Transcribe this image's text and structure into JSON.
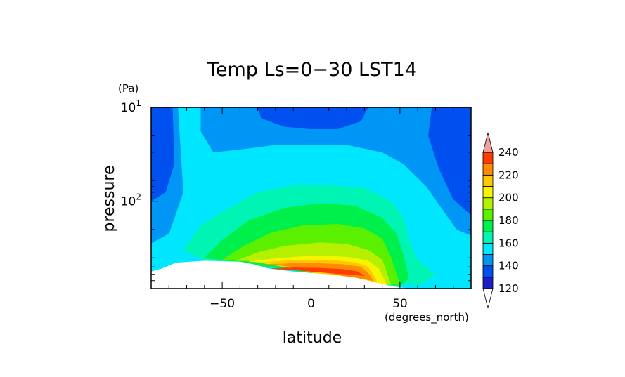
{
  "chart_data": {
    "type": "heatmap",
    "title": "Temp Ls=0−30 LST14",
    "xlabel": "latitude",
    "ylabel": "pressure",
    "x_units": "(degrees_north)",
    "y_units": "(Pa)",
    "xlim": [
      -90,
      90
    ],
    "ylim": [
      10,
      850
    ],
    "y_scale": "log",
    "y_reversed": true,
    "x_ticks": [
      -50,
      0,
      50
    ],
    "x_tick_labels": [
      "−50",
      "0",
      "50"
    ],
    "y_ticks": [
      {
        "value": 10,
        "base": "10",
        "exp": "1"
      },
      {
        "value": 100,
        "base": "10",
        "exp": "2"
      }
    ],
    "colorbar": {
      "levels": [
        110,
        120,
        130,
        140,
        150,
        160,
        170,
        180,
        190,
        200,
        210,
        220,
        230,
        240,
        250
      ],
      "labels": [
        "120",
        "140",
        "160",
        "180",
        "200",
        "220",
        "240"
      ],
      "colors": [
        "#9400d3",
        "#1e1ec8",
        "#0050f0",
        "#0096f5",
        "#00e6ff",
        "#00f5b4",
        "#00f04b",
        "#5af000",
        "#b4f000",
        "#f5f500",
        "#ffc800",
        "#ff8c00",
        "#ff3c00",
        "#f0a0a0"
      ],
      "extend": "both"
    },
    "missing_region": "white area near the surface (high pressure) where data is undefined",
    "contour_bands": [
      {
        "color": "#00e6ff",
        "points": [
          [
            -90,
            10
          ],
          [
            -72,
            10
          ],
          [
            -70,
            20
          ],
          [
            -68,
            70
          ],
          [
            -70,
            220
          ],
          [
            -90,
            320
          ]
        ]
      },
      {
        "color": "#0096f5",
        "points": [
          [
            -90,
            10
          ],
          [
            -75,
            10
          ],
          [
            -72,
            80
          ],
          [
            -80,
            220
          ],
          [
            -90,
            280
          ]
        ]
      },
      {
        "color": "#0050f0",
        "points": [
          [
            -90,
            10
          ],
          [
            -78,
            10
          ],
          [
            -77,
            40
          ],
          [
            -82,
            80
          ],
          [
            -90,
            100
          ]
        ]
      },
      {
        "color": "#0096f5",
        "points": [
          [
            -62,
            10
          ],
          [
            90,
            10
          ],
          [
            90,
            230
          ],
          [
            82,
            200
          ],
          [
            75,
            130
          ],
          [
            65,
            70
          ],
          [
            52,
            40
          ],
          [
            40,
            30
          ],
          [
            20,
            25
          ],
          [
            0,
            25
          ],
          [
            -20,
            25
          ],
          [
            -40,
            28
          ],
          [
            -55,
            30
          ],
          [
            -62,
            18
          ]
        ]
      },
      {
        "color": "#0050f0",
        "points": [
          [
            -30,
            10
          ],
          [
            32,
            10
          ],
          [
            28,
            14
          ],
          [
            15,
            17
          ],
          [
            0,
            17
          ],
          [
            -15,
            16
          ],
          [
            -28,
            13
          ]
        ]
      },
      {
        "color": "#0050f0",
        "points": [
          [
            68,
            10
          ],
          [
            90,
            10
          ],
          [
            90,
            140
          ],
          [
            80,
            95
          ],
          [
            72,
            45
          ],
          [
            66,
            20
          ]
        ]
      },
      {
        "color": "#00f5b4",
        "points": [
          [
            -72,
            330
          ],
          [
            -62,
            180
          ],
          [
            -50,
            130
          ],
          [
            -30,
            80
          ],
          [
            -10,
            68
          ],
          [
            10,
            68
          ],
          [
            30,
            72
          ],
          [
            45,
            100
          ],
          [
            52,
            150
          ],
          [
            55,
            260
          ],
          [
            60,
            420
          ],
          [
            70,
            620
          ],
          [
            60,
            780
          ],
          [
            -60,
            420
          ]
        ]
      },
      {
        "color": "#00f04b",
        "points": [
          [
            -60,
            400
          ],
          [
            -50,
            260
          ],
          [
            -35,
            160
          ],
          [
            -15,
            118
          ],
          [
            5,
            105
          ],
          [
            25,
            112
          ],
          [
            40,
            150
          ],
          [
            48,
            220
          ],
          [
            52,
            380
          ],
          [
            55,
            660
          ],
          [
            50,
            800
          ],
          [
            -50,
            420
          ]
        ]
      },
      {
        "color": "#5af000",
        "points": [
          [
            -50,
            420
          ],
          [
            -38,
            300
          ],
          [
            -22,
            215
          ],
          [
            -5,
            182
          ],
          [
            15,
            175
          ],
          [
            30,
            195
          ],
          [
            40,
            250
          ],
          [
            45,
            400
          ],
          [
            50,
            780
          ],
          [
            -40,
            420
          ]
        ]
      },
      {
        "color": "#b4f000",
        "points": [
          [
            -42,
            430
          ],
          [
            -30,
            350
          ],
          [
            -15,
            300
          ],
          [
            5,
            275
          ],
          [
            20,
            285
          ],
          [
            32,
            330
          ],
          [
            40,
            420
          ],
          [
            45,
            780
          ],
          [
            -35,
            430
          ]
        ]
      },
      {
        "color": "#f5f500",
        "points": [
          [
            -35,
            440
          ],
          [
            -22,
            410
          ],
          [
            -8,
            390
          ],
          [
            8,
            380
          ],
          [
            22,
            395
          ],
          [
            32,
            430
          ],
          [
            38,
            520
          ],
          [
            43,
            800
          ],
          [
            -30,
            440
          ]
        ]
      },
      {
        "color": "#ffc800",
        "points": [
          [
            -28,
            450
          ],
          [
            -15,
            430
          ],
          [
            0,
            425
          ],
          [
            15,
            430
          ],
          [
            25,
            450
          ],
          [
            32,
            500
          ],
          [
            36,
            650
          ],
          [
            38,
            820
          ],
          [
            -25,
            450
          ]
        ]
      },
      {
        "color": "#ff8c00",
        "points": [
          [
            -26,
            470
          ],
          [
            -10,
            460
          ],
          [
            5,
            460
          ],
          [
            18,
            470
          ],
          [
            28,
            500
          ],
          [
            32,
            580
          ],
          [
            35,
            700
          ],
          [
            -20,
            470
          ]
        ]
      },
      {
        "color": "#ff3c00",
        "points": [
          [
            -22,
            520
          ],
          [
            -10,
            510
          ],
          [
            5,
            515
          ],
          [
            18,
            530
          ],
          [
            26,
            560
          ],
          [
            30,
            620
          ],
          [
            -15,
            530
          ]
        ]
      }
    ]
  }
}
